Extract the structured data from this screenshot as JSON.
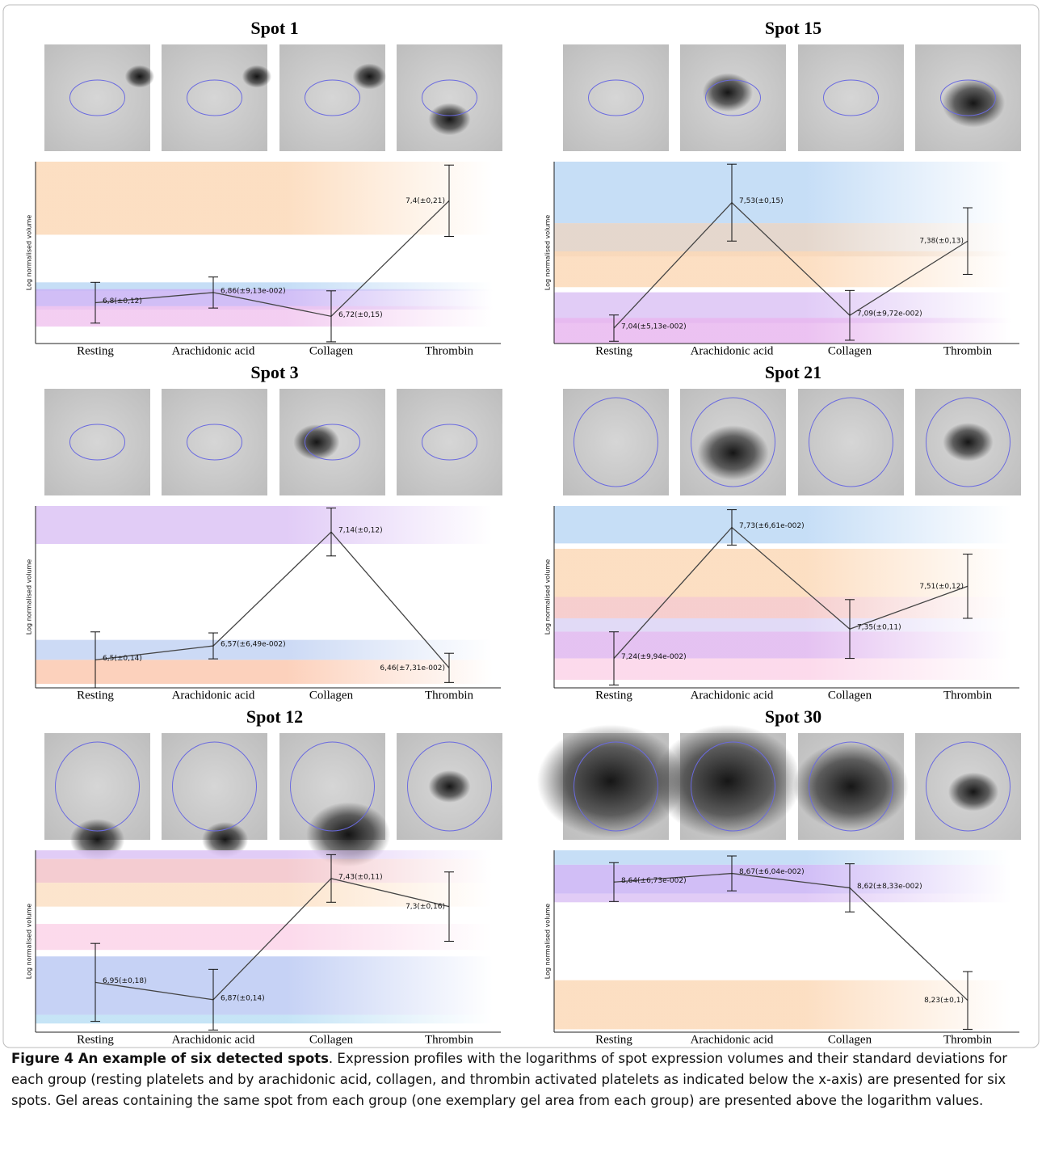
{
  "chart_data": [
    {
      "type": "line",
      "title": "Spot 1",
      "y_label": "Log normalised volume",
      "categories": [
        "Resting",
        "Arachidonic acid",
        "Collagen",
        "Thrombin"
      ],
      "values": [
        6.8,
        6.86,
        6.72,
        7.4
      ],
      "errors": [
        0.12,
        0.0913,
        0.15,
        0.21
      ],
      "value_labels": [
        "6,8(±0,12)",
        "6,86(±9,13e-002)",
        "6,72(±0,15)",
        "7,4(±0,21)"
      ],
      "ylim": [
        6.56,
        7.63
      ],
      "color": "#444444",
      "bands": [
        {
          "from": 7.2,
          "to": 7.63,
          "color": "#fcd9b8"
        },
        {
          "from": 6.87,
          "to": 6.92,
          "color": "#bcd8f5"
        },
        {
          "from": 6.76,
          "to": 6.88,
          "color": "#c9b3f5"
        },
        {
          "from": 6.66,
          "to": 6.78,
          "color": "#f1c6ef"
        }
      ]
    },
    {
      "type": "line",
      "title": "Spot 15",
      "y_label": "Log normalised volume",
      "categories": [
        "Resting",
        "Arachidonic acid",
        "Collagen",
        "Thrombin"
      ],
      "values": [
        7.04,
        7.53,
        7.09,
        7.38
      ],
      "errors": [
        0.0513,
        0.15,
        0.0972,
        0.13
      ],
      "value_labels": [
        "7,04(±5,13e-002)",
        "7,53(±0,15)",
        "7,09(±9,72e-002)",
        "7,38(±0,13)"
      ],
      "ylim": [
        6.98,
        7.69
      ],
      "color": "#444444",
      "bands": [
        {
          "from": 7.45,
          "to": 7.69,
          "color": "#bcd8f5"
        },
        {
          "from": 7.32,
          "to": 7.45,
          "color": "#e0d0c4"
        },
        {
          "from": 7.2,
          "to": 7.34,
          "color": "#fcd9b8"
        },
        {
          "from": 7.06,
          "to": 7.18,
          "color": "#dcc3f5"
        },
        {
          "from": 6.98,
          "to": 7.08,
          "color": "#e8b7ef"
        }
      ]
    },
    {
      "type": "line",
      "title": "Spot 3",
      "y_label": "Log normalised volume",
      "categories": [
        "Resting",
        "Arachidonic acid",
        "Collagen",
        "Thrombin"
      ],
      "values": [
        6.5,
        6.57,
        7.14,
        6.46
      ],
      "errors": [
        0.14,
        0.0649,
        0.12,
        0.0731
      ],
      "value_labels": [
        "6,5(±0,14)",
        "6,57(±6,49e-002)",
        "7,14(±0,12)",
        "6,46(±7,31e-002)"
      ],
      "ylim": [
        6.36,
        7.27
      ],
      "color": "#444444",
      "bands": [
        {
          "from": 7.08,
          "to": 7.27,
          "color": "#dcc3f5"
        },
        {
          "from": 6.5,
          "to": 6.6,
          "color": "#c3d3f3"
        },
        {
          "from": 6.38,
          "to": 6.5,
          "color": "#fcc9b0"
        }
      ]
    },
    {
      "type": "line",
      "title": "Spot 21",
      "y_label": "Log normalised volume",
      "categories": [
        "Resting",
        "Arachidonic acid",
        "Collagen",
        "Thrombin"
      ],
      "values": [
        7.24,
        7.73,
        7.35,
        7.51
      ],
      "errors": [
        0.0994,
        0.0661,
        0.11,
        0.12
      ],
      "value_labels": [
        "7,24(±9,94e-002)",
        "7,73(±6,61e-002)",
        "7,35(±0,11)",
        "7,51(±0,12)"
      ],
      "ylim": [
        7.13,
        7.81
      ],
      "color": "#444444",
      "bands": [
        {
          "from": 7.67,
          "to": 7.81,
          "color": "#bcd8f5"
        },
        {
          "from": 7.47,
          "to": 7.65,
          "color": "#fcd9b8"
        },
        {
          "from": 7.39,
          "to": 7.47,
          "color": "#f4c6c6"
        },
        {
          "from": 7.34,
          "to": 7.39,
          "color": "#dcd3f5"
        },
        {
          "from": 7.24,
          "to": 7.34,
          "color": "#e0b7ef"
        },
        {
          "from": 7.16,
          "to": 7.24,
          "color": "#fbd3e8"
        }
      ]
    },
    {
      "type": "line",
      "title": "Spot 12",
      "y_label": "Log normalised volume",
      "categories": [
        "Resting",
        "Arachidonic acid",
        "Collagen",
        "Thrombin"
      ],
      "values": [
        6.95,
        6.87,
        7.43,
        7.3
      ],
      "errors": [
        0.18,
        0.14,
        0.11,
        0.16
      ],
      "value_labels": [
        "6,95(±0,18)",
        "6,87(±0,14)",
        "7,43(±0,11)",
        "7,3(±0,16)"
      ],
      "ylim": [
        6.72,
        7.56
      ],
      "color": "#444444",
      "bands": [
        {
          "from": 7.52,
          "to": 7.56,
          "color": "#dcc3f5"
        },
        {
          "from": 7.41,
          "to": 7.52,
          "color": "#f2c3c9"
        },
        {
          "from": 7.3,
          "to": 7.41,
          "color": "#fce0c4"
        },
        {
          "from": 7.1,
          "to": 7.22,
          "color": "#fbd3e8"
        },
        {
          "from": 6.8,
          "to": 7.07,
          "color": "#bccaf3"
        },
        {
          "from": 6.76,
          "to": 6.8,
          "color": "#bce0f5"
        }
      ]
    },
    {
      "type": "line",
      "title": "Spot 30",
      "y_label": "Log normalised volume",
      "categories": [
        "Resting",
        "Arachidonic acid",
        "Collagen",
        "Thrombin"
      ],
      "values": [
        8.64,
        8.67,
        8.62,
        8.23
      ],
      "errors": [
        0.0673,
        0.0604,
        0.0833,
        0.1
      ],
      "value_labels": [
        "8,64(±6,73e-002)",
        "8,67(±6,04e-002)",
        "8,62(±8,33e-002)",
        "8,23(±0,1)"
      ],
      "ylim": [
        8.12,
        8.75
      ],
      "color": "#444444",
      "bands": [
        {
          "from": 8.7,
          "to": 8.75,
          "color": "#bcd8f5"
        },
        {
          "from": 8.6,
          "to": 8.7,
          "color": "#c9b3f5"
        },
        {
          "from": 8.57,
          "to": 8.6,
          "color": "#dcc3f5"
        },
        {
          "from": 8.13,
          "to": 8.3,
          "color": "#fcd9b8"
        }
      ]
    }
  ],
  "caption": {
    "label": "Figure 4 An example of six detected spots",
    "text": ". Expression profiles with the logarithms of spot expression volumes and their standard deviations for each group (resting platelets and by arachidonic acid, collagen, and thrombin activated platelets as indicated below the x-axis) are presented for six spots. Gel areas containing the same spot from each group (one exemplary gel area from each group) are presented above the logarithm values."
  }
}
